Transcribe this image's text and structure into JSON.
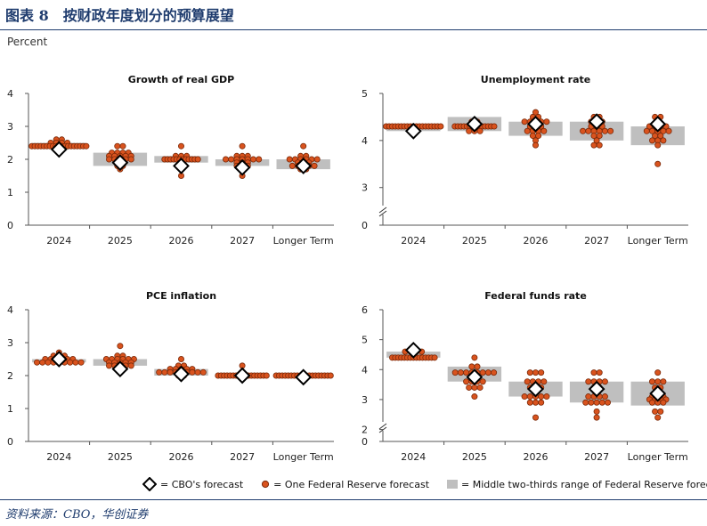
{
  "figure": {
    "title": "图表 8　按财政年度划分的预算展望",
    "y_unit": "Percent",
    "source": "资料来源：CBO，华创证券"
  },
  "legend": {
    "cbo": "= CBO's forecast",
    "fed": "= One Federal Reserve forecast",
    "range": "= Middle two-thirds range of Federal Reserve forecasts"
  },
  "colors": {
    "dot_fill": "#d9531e",
    "dot_stroke": "#7a2a0a",
    "range_box": "#bfbfbf",
    "diamond_fill": "#ffffff",
    "diamond_stroke": "#000000",
    "title_blue": "#1f3c6e"
  },
  "chart_data": [
    {
      "type": "scatter",
      "title": "Growth of real GDP",
      "categories": [
        "2024",
        "2025",
        "2026",
        "2027",
        "Longer Term"
      ],
      "ylim": [
        0,
        4
      ],
      "yticks": [
        "0",
        "1",
        "2",
        "3",
        "4"
      ],
      "axis_break": false,
      "cbo": [
        2.3,
        1.9,
        1.8,
        1.75,
        1.8
      ],
      "range": [
        [
          2.4,
          2.5
        ],
        [
          1.8,
          2.2
        ],
        [
          1.9,
          2.1
        ],
        [
          1.8,
          2.0
        ],
        [
          1.7,
          2.0
        ]
      ],
      "fed": [
        [
          [
            2.6,
            2
          ],
          [
            2.5,
            4
          ],
          [
            2.4,
            19
          ]
        ],
        [
          [
            2.4,
            2
          ],
          [
            2.2,
            4
          ],
          [
            2.1,
            5
          ],
          [
            2.0,
            5
          ],
          [
            1.9,
            2
          ],
          [
            1.8,
            2
          ],
          [
            1.7,
            1
          ]
        ],
        [
          [
            2.4,
            1
          ],
          [
            2.1,
            3
          ],
          [
            2.0,
            12
          ],
          [
            1.9,
            1
          ],
          [
            1.8,
            1
          ],
          [
            1.5,
            1
          ]
        ],
        [
          [
            2.4,
            1
          ],
          [
            2.1,
            3
          ],
          [
            2.0,
            7
          ],
          [
            1.9,
            3
          ],
          [
            1.8,
            3
          ],
          [
            1.7,
            1
          ],
          [
            1.5,
            1
          ]
        ],
        [
          [
            2.4,
            1
          ],
          [
            2.1,
            2
          ],
          [
            2.0,
            6
          ],
          [
            1.9,
            3
          ],
          [
            1.8,
            5
          ],
          [
            1.7,
            2
          ]
        ]
      ]
    },
    {
      "type": "scatter",
      "title": "Unemployment rate",
      "categories": [
        "2024",
        "2025",
        "2026",
        "2027",
        "Longer Term"
      ],
      "ylim": [
        2.2,
        5
      ],
      "yticks_vals": [
        0,
        3,
        4,
        5
      ],
      "yticks": [
        "0",
        "3",
        "4",
        "5"
      ],
      "axis_break": true,
      "cbo": [
        4.2,
        4.35,
        4.35,
        4.4,
        4.35
      ],
      "range": [
        [
          4.2,
          4.3
        ],
        [
          4.2,
          4.5
        ],
        [
          4.1,
          4.4
        ],
        [
          4.0,
          4.4
        ],
        [
          3.9,
          4.3
        ]
      ],
      "fed": [
        [
          [
            4.3,
            19
          ]
        ],
        [
          [
            4.4,
            2
          ],
          [
            4.3,
            14
          ],
          [
            4.2,
            3
          ]
        ],
        [
          [
            4.6,
            1
          ],
          [
            4.5,
            2
          ],
          [
            4.4,
            5
          ],
          [
            4.3,
            3
          ],
          [
            4.2,
            4
          ],
          [
            4.1,
            2
          ],
          [
            4.0,
            1
          ],
          [
            3.9,
            1
          ]
        ],
        [
          [
            4.5,
            2
          ],
          [
            4.4,
            3
          ],
          [
            4.3,
            3
          ],
          [
            4.2,
            6
          ],
          [
            4.1,
            2
          ],
          [
            4.0,
            1
          ],
          [
            3.9,
            2
          ]
        ],
        [
          [
            4.5,
            2
          ],
          [
            4.4,
            1
          ],
          [
            4.3,
            4
          ],
          [
            4.2,
            5
          ],
          [
            4.1,
            2
          ],
          [
            4.0,
            3
          ],
          [
            3.9,
            1
          ],
          [
            3.5,
            1
          ]
        ]
      ]
    },
    {
      "type": "scatter",
      "title": "PCE inflation",
      "categories": [
        "2024",
        "2025",
        "2026",
        "2027",
        "Longer Term"
      ],
      "ylim": [
        0,
        4
      ],
      "yticks": [
        "0",
        "1",
        "2",
        "3",
        "4"
      ],
      "axis_break": false,
      "cbo": [
        2.5,
        2.2,
        2.05,
        2.0,
        1.95
      ],
      "range": [
        [
          2.4,
          2.5
        ],
        [
          2.3,
          2.5
        ],
        [
          2.0,
          2.2
        ],
        [
          1.95,
          2.0
        ],
        [
          1.95,
          2.0
        ]
      ],
      "fed": [
        [
          [
            2.7,
            1
          ],
          [
            2.6,
            3
          ],
          [
            2.5,
            6
          ],
          [
            2.4,
            9
          ]
        ],
        [
          [
            2.9,
            1
          ],
          [
            2.6,
            2
          ],
          [
            2.5,
            6
          ],
          [
            2.4,
            5
          ],
          [
            2.3,
            5
          ]
        ],
        [
          [
            2.5,
            1
          ],
          [
            2.3,
            2
          ],
          [
            2.2,
            5
          ],
          [
            2.1,
            9
          ],
          [
            2.0,
            2
          ]
        ],
        [
          [
            2.3,
            1
          ],
          [
            2.1,
            1
          ],
          [
            2.0,
            17
          ]
        ],
        [
          [
            2.0,
            19
          ]
        ]
      ]
    },
    {
      "type": "scatter",
      "title": "Federal funds rate",
      "categories": [
        "2024",
        "2025",
        "2026",
        "2027",
        "Longer Term"
      ],
      "ylim": [
        1.6,
        6
      ],
      "yticks_vals": [
        0,
        2,
        3,
        4,
        5,
        6
      ],
      "yticks": [
        "0",
        "2",
        "3",
        "4",
        "5",
        "6"
      ],
      "axis_break": true,
      "cbo": [
        4.65,
        3.75,
        3.35,
        3.35,
        3.2
      ],
      "range": [
        [
          4.4,
          4.6
        ],
        [
          3.6,
          4.1
        ],
        [
          3.1,
          3.6
        ],
        [
          2.9,
          3.6
        ],
        [
          2.8,
          3.6
        ]
      ],
      "fed": [
        [
          [
            4.4,
            15
          ],
          [
            4.6,
            4
          ]
        ],
        [
          [
            4.4,
            1
          ],
          [
            4.1,
            2
          ],
          [
            3.9,
            8
          ],
          [
            3.6,
            4
          ],
          [
            3.4,
            3
          ],
          [
            3.1,
            1
          ]
        ],
        [
          [
            3.9,
            3
          ],
          [
            3.6,
            4
          ],
          [
            3.4,
            3
          ],
          [
            3.1,
            5
          ],
          [
            2.9,
            3
          ],
          [
            2.4,
            1
          ]
        ],
        [
          [
            3.9,
            2
          ],
          [
            3.6,
            4
          ],
          [
            3.4,
            2
          ],
          [
            3.1,
            4
          ],
          [
            2.9,
            5
          ],
          [
            2.6,
            1
          ],
          [
            2.4,
            1
          ]
        ],
        [
          [
            3.9,
            1
          ],
          [
            3.6,
            3
          ],
          [
            3.4,
            2
          ],
          [
            3.1,
            3
          ],
          [
            3.0,
            4
          ],
          [
            2.9,
            3
          ],
          [
            2.6,
            2
          ],
          [
            2.4,
            1
          ]
        ]
      ]
    }
  ]
}
